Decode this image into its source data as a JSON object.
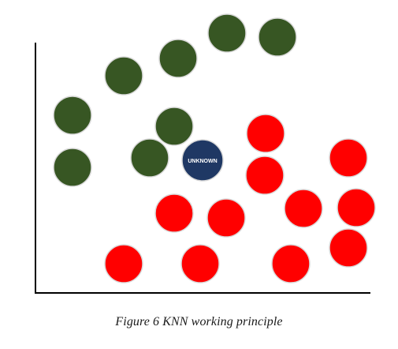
{
  "diagram": {
    "caption": "Figure 6 KNN working principle",
    "unknown_label": "UNKNOWN",
    "colors": {
      "green": "#375623",
      "red": "#ff0000",
      "unknown": "#1f3864",
      "axis": "#000000",
      "outline": "#d9d9d9"
    }
  }
}
